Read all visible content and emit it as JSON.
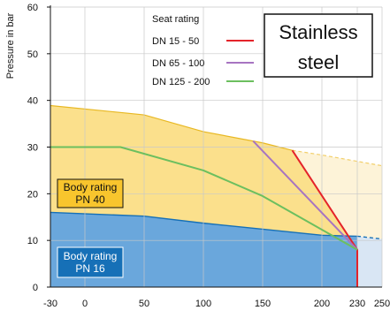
{
  "chart_data": {
    "type": "area",
    "ylabel": "Pressure in bar",
    "xlim": [
      -30,
      250
    ],
    "ylim": [
      0,
      60
    ],
    "x_ticks": [
      -30,
      0,
      50,
      100,
      150,
      200,
      230,
      250
    ],
    "y_ticks": [
      0,
      10,
      20,
      30,
      40,
      50,
      60
    ],
    "grid": true,
    "body_ratings": [
      {
        "label_line1": "Body rating",
        "label_line2": "PN 40",
        "color": "#fbe08c",
        "extension_color": "#fdf3d8",
        "x": [
          -30,
          50,
          100,
          150,
          175
        ],
        "y": [
          38.9,
          36.9,
          33.3,
          30.9,
          29.3
        ],
        "extension_x": [
          175,
          200,
          250
        ],
        "extension_y": [
          29.3,
          28.3,
          26.0
        ]
      },
      {
        "label_line1": "Body rating",
        "label_line2": "PN 16",
        "color": "#6aa7dc",
        "extension_color": "#d9e6f4",
        "x": [
          -30,
          50,
          100,
          150,
          200
        ],
        "y": [
          16,
          15.2,
          13.7,
          12.4,
          11.1
        ],
        "extension_x": [
          200,
          250
        ],
        "extension_y": [
          11.1,
          10.3
        ]
      }
    ],
    "seat_ratings": {
      "title": "Seat rating",
      "series": [
        {
          "name": "DN 15 - 50",
          "color": "#e4232a",
          "x": [
            175,
            230,
            230
          ],
          "y": [
            29.3,
            8,
            0
          ]
        },
        {
          "name": "DN 65 - 100",
          "color": "#a774c1",
          "x": [
            142,
            230
          ],
          "y": [
            31.3,
            8
          ]
        },
        {
          "name": "DN 125 - 200",
          "color": "#6cbf5f",
          "x": [
            -30,
            30,
            100,
            150,
            230
          ],
          "y": [
            30,
            30,
            25,
            19.5,
            8
          ]
        }
      ]
    },
    "annotation": {
      "line1": "Stainless",
      "line2": "steel"
    }
  }
}
